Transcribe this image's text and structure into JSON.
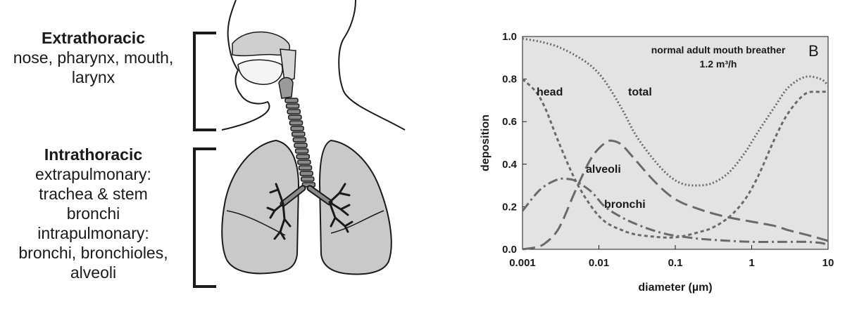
{
  "figure": {
    "extrathoracic": {
      "title": "Extrathoracic",
      "lines": [
        "nose, pharynx, mouth,",
        "larynx"
      ]
    },
    "intrathoracic": {
      "title": "Intrathoracic",
      "lines": [
        "extrapulmonary:",
        "trachea & stem",
        "bronchi",
        "intrapulmonary:",
        "bronchi, bronchioles,",
        "alveoli"
      ]
    }
  },
  "chart_data": {
    "type": "line",
    "panel_letter": "B",
    "annotation_lines": [
      "normal adult mouth breather",
      "1.2 m³/h"
    ],
    "xlabel": "diameter (µm)",
    "ylabel": "deposition",
    "xscale": "log",
    "xlim": [
      0.001,
      10
    ],
    "ylim": [
      0,
      1.0
    ],
    "xticks": [
      0.001,
      0.01,
      0.1,
      1,
      10
    ],
    "xtick_labels": [
      "0.001",
      "0.01",
      "0.1",
      "1",
      "10"
    ],
    "yticks": [
      0,
      0.2,
      0.4,
      0.6,
      0.8,
      1.0
    ],
    "ytick_labels": [
      "0.0",
      "0.2",
      "0.4",
      "0.6",
      "0.8",
      "1.0"
    ],
    "plot_background": "#e3e3e3",
    "series": [
      {
        "name": "total",
        "style": "dotted",
        "x": [
          0.001,
          0.0015,
          0.002,
          0.003,
          0.005,
          0.008,
          0.012,
          0.02,
          0.03,
          0.05,
          0.08,
          0.12,
          0.18,
          0.3,
          0.5,
          0.8,
          1.2,
          2,
          3,
          5,
          8,
          10
        ],
        "y": [
          0.99,
          0.98,
          0.97,
          0.95,
          0.91,
          0.86,
          0.79,
          0.66,
          0.54,
          0.43,
          0.35,
          0.31,
          0.3,
          0.31,
          0.36,
          0.45,
          0.55,
          0.67,
          0.76,
          0.81,
          0.8,
          0.77
        ]
      },
      {
        "name": "head",
        "style": "dashed",
        "x": [
          0.001,
          0.0015,
          0.002,
          0.003,
          0.005,
          0.008,
          0.012,
          0.02,
          0.03,
          0.05,
          0.08,
          0.12,
          0.2,
          0.3,
          0.5,
          0.8,
          1.2,
          2,
          3,
          5,
          8,
          10
        ],
        "y": [
          0.8,
          0.74,
          0.66,
          0.5,
          0.32,
          0.2,
          0.13,
          0.09,
          0.07,
          0.06,
          0.055,
          0.06,
          0.08,
          0.1,
          0.15,
          0.23,
          0.34,
          0.52,
          0.64,
          0.73,
          0.74,
          0.74
        ]
      },
      {
        "name": "alveoli",
        "style": "long-dash",
        "x": [
          0.001,
          0.0015,
          0.002,
          0.003,
          0.005,
          0.008,
          0.012,
          0.015,
          0.02,
          0.03,
          0.05,
          0.08,
          0.12,
          0.2,
          0.3,
          0.5,
          1,
          2,
          3,
          5,
          8,
          10
        ],
        "y": [
          0.0,
          0.01,
          0.03,
          0.1,
          0.28,
          0.43,
          0.5,
          0.51,
          0.49,
          0.42,
          0.33,
          0.26,
          0.22,
          0.19,
          0.17,
          0.15,
          0.13,
          0.11,
          0.09,
          0.07,
          0.05,
          0.04
        ]
      },
      {
        "name": "bronchi",
        "style": "dash-dot",
        "x": [
          0.001,
          0.0015,
          0.002,
          0.003,
          0.004,
          0.005,
          0.008,
          0.012,
          0.02,
          0.03,
          0.05,
          0.08,
          0.12,
          0.2,
          0.3,
          0.5,
          1,
          2,
          3,
          5,
          8,
          10
        ],
        "y": [
          0.18,
          0.26,
          0.3,
          0.33,
          0.33,
          0.32,
          0.27,
          0.2,
          0.15,
          0.12,
          0.09,
          0.07,
          0.06,
          0.05,
          0.045,
          0.04,
          0.035,
          0.035,
          0.035,
          0.035,
          0.03,
          0.02
        ]
      }
    ],
    "series_labels": [
      "head",
      "total",
      "alveoli",
      "bronchi"
    ]
  }
}
